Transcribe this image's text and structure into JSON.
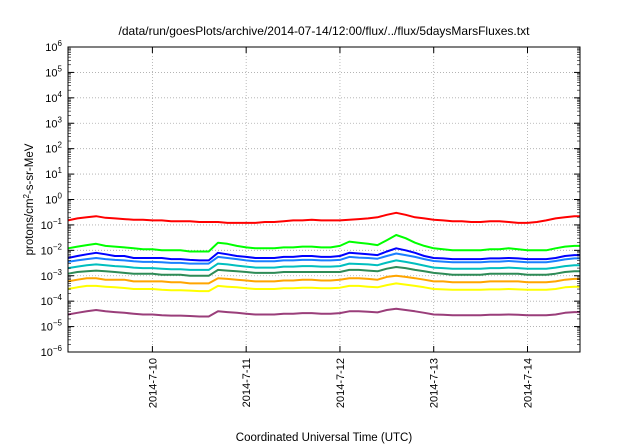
{
  "chart_data": {
    "type": "line",
    "title": "/data/run/goesPlots/archive/2014-07-14/12:00/flux/../flux/5daysMarsFluxes.txt",
    "xlabel": "Coordinated Universal Time (UTC)",
    "ylabel": "protons/cm2-s-sr-MeV",
    "ylabel_parts": {
      "pre": "protons/cm",
      "sup": "2",
      "post": "-s-sr-MeV"
    },
    "yscale": "log",
    "ylim_exp": [
      -6,
      6
    ],
    "ytick_exponents": [
      -6,
      -5,
      -4,
      -3,
      -2,
      -1,
      0,
      1,
      2,
      3,
      4,
      5,
      6
    ],
    "xlim_days": [
      9.1,
      14.56
    ],
    "xticks": [
      {
        "day": 10,
        "label": "2014-7-10"
      },
      {
        "day": 11,
        "label": "2014-7-11"
      },
      {
        "day": 12,
        "label": "2014-7-12"
      },
      {
        "day": 13,
        "label": "2014-7-13"
      },
      {
        "day": 14,
        "label": "2014-7-14"
      }
    ],
    "grid": true,
    "legend": "none",
    "x_days": [
      9.1,
      9.2,
      9.3,
      9.4,
      9.5,
      9.6,
      9.7,
      9.8,
      9.9,
      10.0,
      10.1,
      10.2,
      10.3,
      10.4,
      10.5,
      10.6,
      10.7,
      10.8,
      10.9,
      11.0,
      11.1,
      11.2,
      11.3,
      11.4,
      11.5,
      11.6,
      11.7,
      11.8,
      11.9,
      12.0,
      12.1,
      12.2,
      12.3,
      12.4,
      12.5,
      12.6,
      12.7,
      12.8,
      12.9,
      13.0,
      13.1,
      13.2,
      13.3,
      13.4,
      13.5,
      13.6,
      13.7,
      13.8,
      13.9,
      14.0,
      14.1,
      14.2,
      14.3,
      14.4,
      14.5,
      14.56
    ],
    "series": [
      {
        "color": "#ff0000",
        "values": [
          0.15,
          0.18,
          0.2,
          0.22,
          0.19,
          0.18,
          0.17,
          0.16,
          0.16,
          0.15,
          0.15,
          0.14,
          0.14,
          0.14,
          0.13,
          0.13,
          0.13,
          0.12,
          0.12,
          0.12,
          0.12,
          0.13,
          0.13,
          0.14,
          0.15,
          0.15,
          0.16,
          0.15,
          0.15,
          0.15,
          0.16,
          0.17,
          0.18,
          0.2,
          0.25,
          0.3,
          0.25,
          0.2,
          0.18,
          0.16,
          0.15,
          0.14,
          0.14,
          0.13,
          0.13,
          0.14,
          0.14,
          0.13,
          0.12,
          0.12,
          0.13,
          0.15,
          0.18,
          0.2,
          0.22,
          0.22
        ]
      },
      {
        "color": "#00ff00",
        "values": [
          0.012,
          0.014,
          0.016,
          0.018,
          0.015,
          0.014,
          0.013,
          0.012,
          0.011,
          0.011,
          0.01,
          0.01,
          0.01,
          0.009,
          0.009,
          0.009,
          0.02,
          0.018,
          0.015,
          0.013,
          0.012,
          0.012,
          0.012,
          0.013,
          0.013,
          0.014,
          0.014,
          0.013,
          0.013,
          0.015,
          0.022,
          0.02,
          0.018,
          0.016,
          0.025,
          0.04,
          0.03,
          0.02,
          0.015,
          0.012,
          0.011,
          0.01,
          0.01,
          0.01,
          0.01,
          0.011,
          0.011,
          0.012,
          0.011,
          0.01,
          0.01,
          0.01,
          0.012,
          0.014,
          0.015,
          0.015
        ]
      },
      {
        "color": "#0000ff",
        "values": [
          0.005,
          0.006,
          0.007,
          0.008,
          0.007,
          0.006,
          0.006,
          0.005,
          0.005,
          0.005,
          0.005,
          0.0045,
          0.0045,
          0.0042,
          0.004,
          0.004,
          0.008,
          0.007,
          0.006,
          0.0055,
          0.005,
          0.005,
          0.005,
          0.0055,
          0.0055,
          0.006,
          0.006,
          0.0055,
          0.0055,
          0.006,
          0.008,
          0.0075,
          0.007,
          0.0065,
          0.009,
          0.012,
          0.01,
          0.008,
          0.006,
          0.005,
          0.0048,
          0.0045,
          0.0045,
          0.0045,
          0.0045,
          0.0048,
          0.0048,
          0.005,
          0.0048,
          0.0045,
          0.0045,
          0.0045,
          0.005,
          0.006,
          0.0065,
          0.0065
        ]
      },
      {
        "color": "#1a7fff",
        "values": [
          0.0035,
          0.004,
          0.0045,
          0.005,
          0.0045,
          0.0042,
          0.004,
          0.0037,
          0.0035,
          0.0035,
          0.0034,
          0.0032,
          0.0032,
          0.003,
          0.003,
          0.003,
          0.0055,
          0.005,
          0.0045,
          0.004,
          0.0037,
          0.0037,
          0.0037,
          0.004,
          0.004,
          0.0042,
          0.0042,
          0.004,
          0.004,
          0.0042,
          0.0055,
          0.0052,
          0.005,
          0.0047,
          0.006,
          0.0075,
          0.0065,
          0.0055,
          0.0045,
          0.0038,
          0.0036,
          0.0034,
          0.0034,
          0.0034,
          0.0034,
          0.0036,
          0.0036,
          0.0038,
          0.0036,
          0.0034,
          0.0034,
          0.0034,
          0.0038,
          0.0044,
          0.0048,
          0.0048
        ]
      },
      {
        "color": "#00bfbf",
        "values": [
          0.002,
          0.0023,
          0.0026,
          0.0028,
          0.0026,
          0.0024,
          0.0023,
          0.0021,
          0.002,
          0.002,
          0.0019,
          0.0018,
          0.0018,
          0.0017,
          0.0017,
          0.0017,
          0.003,
          0.0028,
          0.0025,
          0.0023,
          0.0021,
          0.0021,
          0.0021,
          0.0023,
          0.0023,
          0.0024,
          0.0024,
          0.0023,
          0.0023,
          0.0024,
          0.003,
          0.0029,
          0.0028,
          0.0026,
          0.0033,
          0.004,
          0.0035,
          0.003,
          0.0025,
          0.0021,
          0.002,
          0.0019,
          0.0019,
          0.0019,
          0.0019,
          0.002,
          0.002,
          0.0021,
          0.002,
          0.0019,
          0.0019,
          0.0019,
          0.0021,
          0.0024,
          0.0026,
          0.0026
        ]
      },
      {
        "color": "#2e8b57",
        "values": [
          0.0012,
          0.0014,
          0.0015,
          0.0016,
          0.0015,
          0.0014,
          0.0013,
          0.0012,
          0.0012,
          0.0012,
          0.0011,
          0.0011,
          0.0011,
          0.001,
          0.001,
          0.001,
          0.0017,
          0.0016,
          0.0015,
          0.0014,
          0.0013,
          0.0013,
          0.0013,
          0.0014,
          0.0014,
          0.0014,
          0.0014,
          0.0014,
          0.0014,
          0.0014,
          0.0017,
          0.0017,
          0.0016,
          0.0015,
          0.0019,
          0.0022,
          0.002,
          0.0017,
          0.0015,
          0.0013,
          0.0012,
          0.0011,
          0.0011,
          0.0011,
          0.0011,
          0.0012,
          0.0012,
          0.0012,
          0.0012,
          0.0011,
          0.0011,
          0.0011,
          0.0012,
          0.0014,
          0.0015,
          0.0015
        ]
      },
      {
        "color": "#ffa500",
        "values": [
          0.0006,
          0.0007,
          0.0008,
          0.0008,
          0.0007,
          0.0007,
          0.0007,
          0.0006,
          0.0006,
          0.0006,
          0.0006,
          0.00055,
          0.00055,
          0.0005,
          0.0005,
          0.0005,
          0.0008,
          0.00075,
          0.0007,
          0.00065,
          0.0006,
          0.0006,
          0.0006,
          0.00065,
          0.00065,
          0.0007,
          0.0007,
          0.00065,
          0.00065,
          0.0007,
          0.0008,
          0.0008,
          0.00075,
          0.0007,
          0.0009,
          0.001,
          0.0009,
          0.0008,
          0.0007,
          0.0006,
          0.0006,
          0.00055,
          0.00055,
          0.00055,
          0.00055,
          0.0006,
          0.0006,
          0.0006,
          0.0006,
          0.00055,
          0.00055,
          0.00055,
          0.0006,
          0.0007,
          0.00075,
          0.00075
        ]
      },
      {
        "color": "#ffff00",
        "values": [
          0.0003,
          0.00035,
          0.0004,
          0.0004,
          0.00037,
          0.00035,
          0.00033,
          0.0003,
          0.0003,
          0.0003,
          0.00028,
          0.00027,
          0.00027,
          0.00026,
          0.00025,
          0.00025,
          0.0004,
          0.00037,
          0.00035,
          0.00032,
          0.0003,
          0.0003,
          0.0003,
          0.00032,
          0.00032,
          0.00034,
          0.00034,
          0.00032,
          0.00032,
          0.00034,
          0.0004,
          0.0004,
          0.00037,
          0.00035,
          0.00043,
          0.0005,
          0.00045,
          0.0004,
          0.00035,
          0.0003,
          0.00029,
          0.00028,
          0.00028,
          0.00028,
          0.00028,
          0.00029,
          0.00029,
          0.0003,
          0.00029,
          0.00028,
          0.00028,
          0.00028,
          0.0003,
          0.00035,
          0.00037,
          0.00037
        ]
      },
      {
        "color": "#9a3e7a",
        "values": [
          3e-05,
          3.5e-05,
          4e-05,
          4.5e-05,
          4e-05,
          3.7e-05,
          3.5e-05,
          3.2e-05,
          3e-05,
          3e-05,
          2.8e-05,
          2.7e-05,
          2.7e-05,
          2.6e-05,
          2.5e-05,
          2.5e-05,
          4e-05,
          3.7e-05,
          3.5e-05,
          3.2e-05,
          3e-05,
          3e-05,
          3e-05,
          3.2e-05,
          3.2e-05,
          3.4e-05,
          3.4e-05,
          3.2e-05,
          3.2e-05,
          3.4e-05,
          4e-05,
          4e-05,
          3.8e-05,
          3.6e-05,
          4.5e-05,
          5e-05,
          4.5e-05,
          4e-05,
          3.5e-05,
          3e-05,
          2.9e-05,
          2.8e-05,
          2.8e-05,
          2.8e-05,
          2.8e-05,
          2.9e-05,
          2.9e-05,
          3e-05,
          2.9e-05,
          2.8e-05,
          2.8e-05,
          2.8e-05,
          3e-05,
          3.5e-05,
          3.7e-05,
          3.7e-05
        ]
      }
    ]
  }
}
